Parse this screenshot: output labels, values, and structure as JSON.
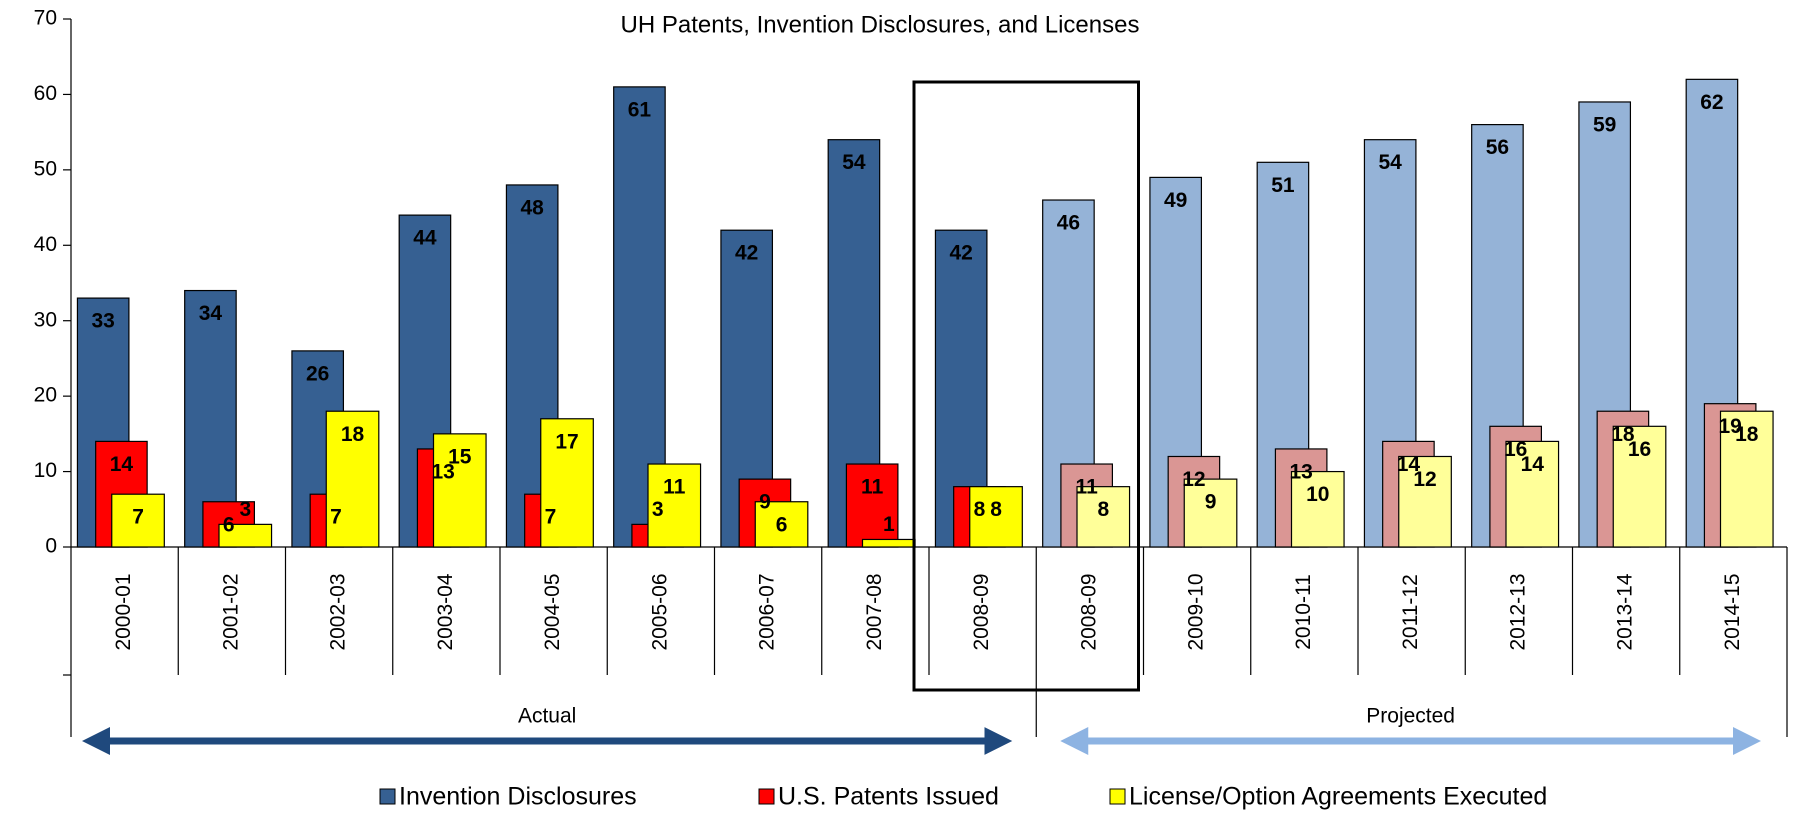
{
  "chart_data": {
    "type": "bar",
    "title": "UH Patents, Invention Disclosures, and Licenses",
    "categories": [
      "2000-01",
      "2001-02",
      "2002-03",
      "2003-04",
      "2004-05",
      "2005-06",
      "2006-07",
      "2007-08",
      "2008-09",
      "2008-09",
      "2009-10",
      "2010-11",
      "2011-12",
      "2012-13",
      "2013-14",
      "2014-15"
    ],
    "series": [
      {
        "name": "Invention Disclosures",
        "color": "#366092",
        "colors": [
          "#366092",
          "#366092",
          "#366092",
          "#366092",
          "#366092",
          "#366092",
          "#366092",
          "#366092",
          "#366092",
          "#95b3d7",
          "#95b3d7",
          "#95b3d7",
          "#95b3d7",
          "#95b3d7",
          "#95b3d7",
          "#95b3d7"
        ],
        "values": [
          33,
          34,
          26,
          44,
          48,
          61,
          42,
          54,
          42,
          46,
          49,
          51,
          54,
          56,
          59,
          62
        ]
      },
      {
        "name": "U.S. Patents Issued",
        "color": "#ff0000",
        "colors": [
          "#ff0000",
          "#ff0000",
          "#ff0000",
          "#ff0000",
          "#ff0000",
          "#ff0000",
          "#ff0000",
          "#ff0000",
          "#ff0000",
          "#da9694",
          "#da9694",
          "#da9694",
          "#da9694",
          "#da9694",
          "#da9694",
          "#da9694"
        ],
        "values": [
          14,
          6,
          7,
          13,
          7,
          3,
          9,
          11,
          8,
          11,
          12,
          13,
          14,
          16,
          18,
          19
        ]
      },
      {
        "name": "License/Option Agreements Executed",
        "color": "#ffff00",
        "colors": [
          "#ffff00",
          "#ffff00",
          "#ffff00",
          "#ffff00",
          "#ffff00",
          "#ffff00",
          "#ffff00",
          "#ffff00",
          "#ffff00",
          "#ffff99",
          "#ffff99",
          "#ffff99",
          "#ffff99",
          "#ffff99",
          "#ffff99",
          "#ffff99"
        ],
        "values": [
          7,
          3,
          18,
          15,
          17,
          11,
          6,
          1,
          8,
          8,
          9,
          10,
          12,
          14,
          16,
          18
        ]
      }
    ],
    "ylim": [
      0,
      70
    ],
    "yticks": [
      0,
      10,
      20,
      30,
      40,
      50,
      60,
      70
    ],
    "annotations": [
      "Actual",
      "Projected"
    ],
    "annotation_colors": [
      "#1f497d",
      "#8db3e2"
    ],
    "legend": "bottom"
  }
}
